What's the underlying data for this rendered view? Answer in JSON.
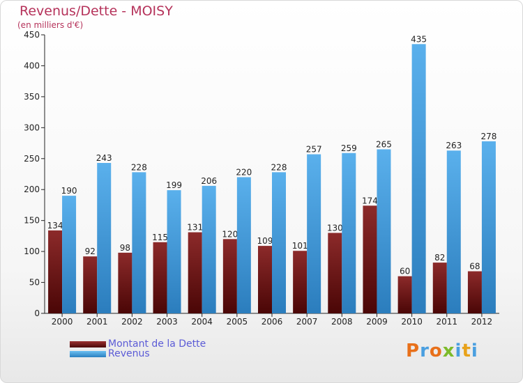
{
  "title": "Revenus/Dette - MOISY",
  "subtitle": "(en milliers d'€)",
  "logo_text": "Proxiti",
  "legend": {
    "debt_label": "Montant de la Dette",
    "revenue_label": "Revenus"
  },
  "colors": {
    "debt": "#7a1a1a",
    "revenue": "#4ea6e6",
    "title": "#b5325a",
    "legend_text": "#5b5bd6"
  },
  "chart_data": {
    "type": "bar",
    "title": "Revenus/Dette - MOISY",
    "subtitle": "(en milliers d'€)",
    "categories": [
      "2000",
      "2001",
      "2002",
      "2003",
      "2004",
      "2005",
      "2006",
      "2007",
      "2008",
      "2009",
      "2010",
      "2011",
      "2012"
    ],
    "series": [
      {
        "name": "Montant de la Dette",
        "values": [
          134,
          92,
          98,
          115,
          131,
          120,
          109,
          101,
          130,
          174,
          60,
          82,
          68
        ]
      },
      {
        "name": "Revenus",
        "values": [
          190,
          243,
          228,
          199,
          206,
          220,
          228,
          257,
          259,
          265,
          435,
          263,
          278
        ]
      }
    ],
    "ylim": [
      0,
      450
    ],
    "yticks": [
      0,
      50,
      100,
      150,
      200,
      250,
      300,
      350,
      400,
      450
    ],
    "grid": false,
    "legend_position": "bottom-left"
  }
}
